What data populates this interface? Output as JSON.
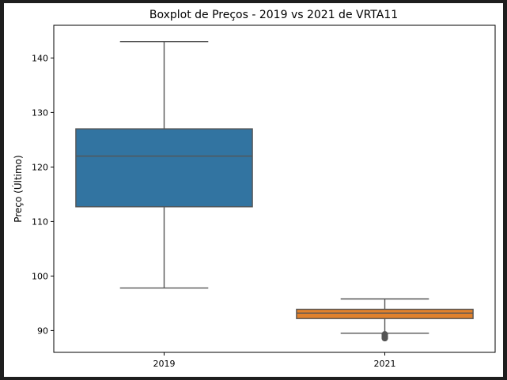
{
  "chart_data": {
    "type": "boxplot",
    "title": "Boxplot de Preços - 2019 vs 2021 de VRTA11",
    "xlabel": "",
    "ylabel": "Preço (Último)",
    "ylim": [
      86,
      146
    ],
    "yticks": [
      90,
      100,
      110,
      120,
      130,
      140
    ],
    "grid": false,
    "categories": [
      "2019",
      "2021"
    ],
    "boxes": [
      {
        "category": "2019",
        "whisker_low": 97.8,
        "q1": 112.7,
        "median": 122.0,
        "q3": 127.0,
        "whisker_high": 143.0,
        "outliers": [],
        "color": "#3274a1"
      },
      {
        "category": "2021",
        "whisker_low": 89.5,
        "q1": 92.2,
        "median": 93.2,
        "q3": 93.9,
        "whisker_high": 95.8,
        "outliers": [
          89.3,
          89.0,
          88.8,
          88.6
        ],
        "color": "#e1812c"
      }
    ]
  }
}
